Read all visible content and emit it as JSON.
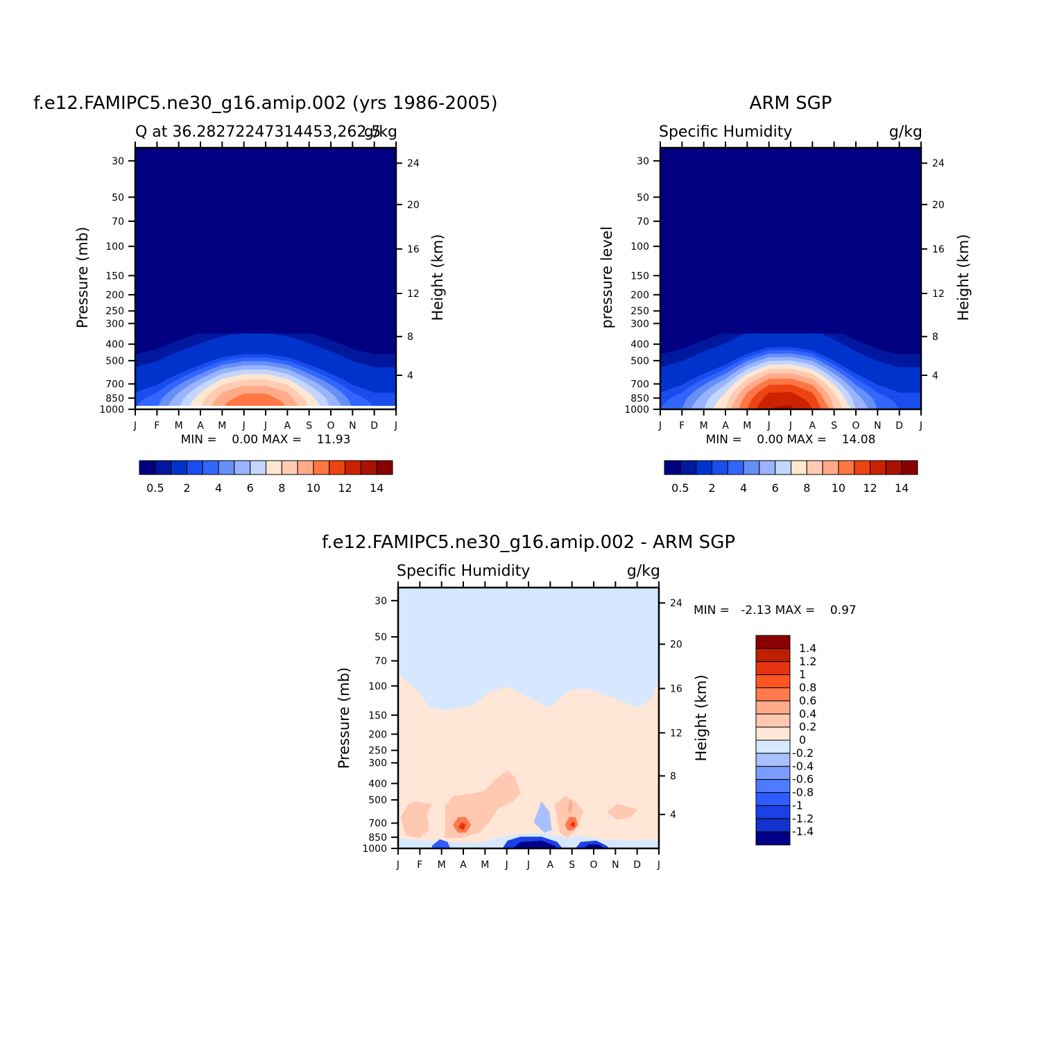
{
  "chart_data": [
    {
      "type": "heatmap",
      "title": "f.e12.FAMIPC5.ne30_g16.amip.002 (yrs 1986-2005)",
      "left_label": "Q at 36.28272247314453,262.5",
      "right_label": "g/kg",
      "ylabel": "Pressure (mb)",
      "ylabel_right": "Height (km)",
      "x": [
        "J",
        "F",
        "M",
        "A",
        "M",
        "J",
        "J",
        "A",
        "S",
        "O",
        "N",
        "D",
        "J"
      ],
      "y_ticks": [
        "30",
        "50",
        "70",
        "100",
        "150",
        "200",
        "250",
        "300",
        "400",
        "500",
        "700",
        "850",
        "1000"
      ],
      "y2_ticks": [
        "24",
        "20",
        "16",
        "12",
        "8",
        "4"
      ],
      "min_text": "MIN =    0.00 MAX =    11.93",
      "min": 0.0,
      "max": 11.93,
      "contour_levels": [
        0.5,
        1,
        2,
        3,
        4,
        5,
        6,
        7,
        8,
        9,
        10,
        11,
        12,
        13,
        14
      ],
      "bottom_row_values": [
        4,
        5,
        7,
        9,
        11,
        11.9,
        11.9,
        11,
        9,
        7,
        5,
        4,
        4
      ],
      "colorbar_labels": [
        "0.5",
        "2",
        "4",
        "6",
        "8",
        "10",
        "12",
        "14"
      ]
    },
    {
      "type": "heatmap",
      "title": "ARM SGP",
      "left_label": "Specific Humidity",
      "right_label": "g/kg",
      "ylabel": "pressure level",
      "ylabel_right": "Height (km)",
      "x": [
        "J",
        "F",
        "M",
        "A",
        "M",
        "J",
        "J",
        "A",
        "S",
        "O",
        "N",
        "D",
        "J"
      ],
      "y_ticks": [
        "30",
        "50",
        "70",
        "100",
        "150",
        "200",
        "250",
        "300",
        "400",
        "500",
        "700",
        "850",
        "1000"
      ],
      "y2_ticks": [
        "24",
        "20",
        "16",
        "12",
        "8",
        "4"
      ],
      "min_text": "MIN =    0.00 MAX =    14.08",
      "min": 0.0,
      "max": 14.08,
      "contour_levels": [
        0.5,
        1,
        2,
        3,
        4,
        5,
        6,
        7,
        8,
        9,
        10,
        11,
        12,
        13,
        14
      ],
      "bottom_row_values": [
        4,
        5,
        7,
        9,
        12,
        14,
        14.08,
        13,
        10,
        7,
        5,
        4,
        4
      ],
      "colorbar_labels": [
        "0.5",
        "2",
        "4",
        "6",
        "8",
        "10",
        "12",
        "14"
      ]
    },
    {
      "type": "heatmap",
      "title": "f.e12.FAMIPC5.ne30_g16.amip.002 - ARM SGP",
      "left_label": "Specific Humidity",
      "right_label": "g/kg",
      "ylabel": "Pressure (mb)",
      "ylabel_right": "Height (km)",
      "x": [
        "J",
        "F",
        "M",
        "A",
        "M",
        "J",
        "J",
        "A",
        "S",
        "O",
        "N",
        "D",
        "J"
      ],
      "y_ticks": [
        "30",
        "50",
        "70",
        "100",
        "150",
        "200",
        "250",
        "300",
        "400",
        "500",
        "700",
        "850",
        "1000"
      ],
      "y2_ticks": [
        "24",
        "20",
        "16",
        "12",
        "8",
        "4"
      ],
      "min_text": "MIN =   -2.13 MAX =    0.97",
      "min": -2.13,
      "max": 0.97,
      "contour_levels": [
        -1.4,
        -1.2,
        -1,
        -0.8,
        -0.6,
        -0.4,
        -0.2,
        0,
        0.2,
        0.4,
        0.6,
        0.8,
        1,
        1.2,
        1.4
      ],
      "colorbar_labels": [
        "1.4",
        "1.2",
        "1",
        "0.8",
        "0.6",
        "0.4",
        "0.2",
        "0",
        "-0.2",
        "-0.4",
        "-0.6",
        "-0.8",
        "-1",
        "-1.2",
        "-1.4"
      ]
    }
  ],
  "colors": {
    "palette": [
      "#000080",
      "#00189e",
      "#0033cc",
      "#1a4ded",
      "#3366ff",
      "#6690f5",
      "#99b3ff",
      "#c2d6ff",
      "#ffe6d1",
      "#ffccb3",
      "#ffaa88",
      "#ff7744",
      "#ee4411",
      "#cc2200",
      "#aa1100",
      "#880000"
    ],
    "difference_negative": [
      "#00008b",
      "#0a1aaa",
      "#0f33cc",
      "#1a40e6",
      "#2e5cff",
      "#4d7aff",
      "#7a9bff",
      "#a8c0ff",
      "#d6e8ff"
    ],
    "difference_positive": [
      "#ffe6d6",
      "#ffc8b0",
      "#ffaa88",
      "#ff7a4d",
      "#ff5522",
      "#e63310",
      "#c02000",
      "#8b0000"
    ]
  }
}
